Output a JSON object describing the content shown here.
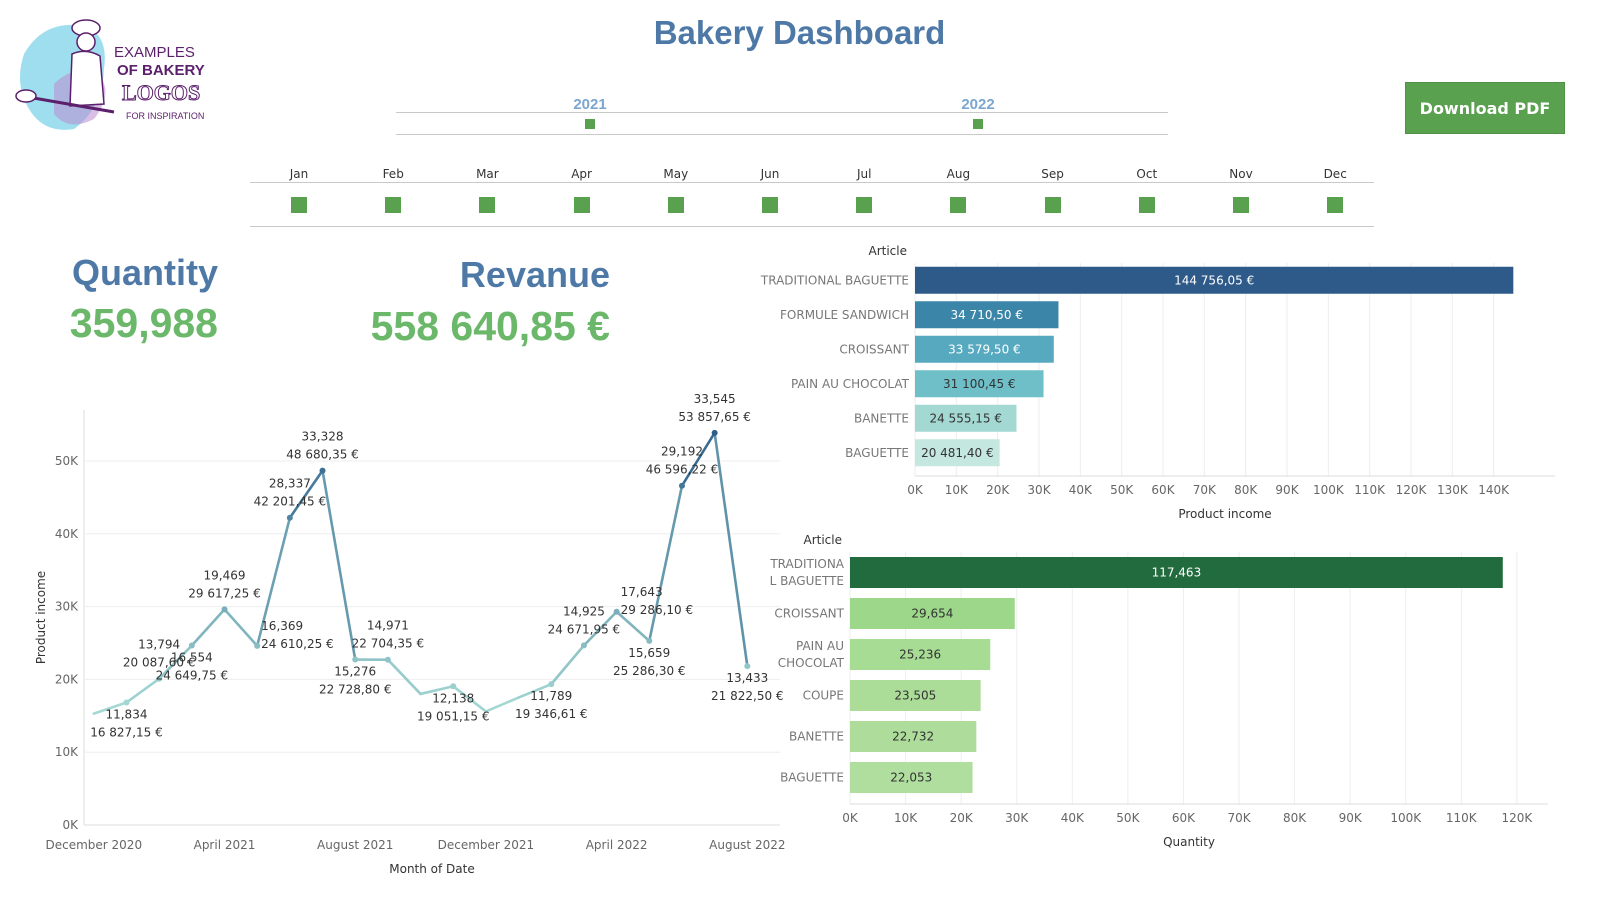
{
  "header": {
    "title": "Bakery Dashboard",
    "download_label": "Download PDF"
  },
  "logo": {
    "line1": "EXAMPLES",
    "line2": "OF BAKERY",
    "line3": "LOGOS",
    "line4": "FOR INSPIRATION",
    "icon": "baker-with-peel-icon"
  },
  "year_filter": {
    "years": [
      "2021",
      "2022"
    ],
    "selected": [
      "2021",
      "2022"
    ]
  },
  "month_filter": {
    "months": [
      "Jan",
      "Feb",
      "Mar",
      "Apr",
      "May",
      "Jun",
      "Jul",
      "Aug",
      "Sep",
      "Oct",
      "Nov",
      "Dec"
    ],
    "selected": [
      "Jan",
      "Feb",
      "Mar",
      "Apr",
      "May",
      "Jun",
      "Jul",
      "Aug",
      "Sep",
      "Oct",
      "Nov",
      "Dec"
    ]
  },
  "kpis": {
    "quantity_label": "Quantity",
    "quantity_value": "359,988",
    "revenue_label": "Revanue",
    "revenue_value": "558 640,85 €"
  },
  "colors": {
    "title_blue": "#4e79a7",
    "kpi_green": "#6bb86b",
    "button_green": "#59a14f",
    "filter_green": "#59a14f"
  },
  "chart_data": [
    {
      "type": "line",
      "xlabel": "Month of Date",
      "ylabel": "Product income",
      "ylim": [
        0,
        57000
      ],
      "yticks": [
        0,
        10000,
        20000,
        30000,
        40000,
        50000
      ],
      "ytick_labels": [
        "0K",
        "10K",
        "20K",
        "30K",
        "40K",
        "50K"
      ],
      "xtick_labels": [
        "December 2020",
        "April 2021",
        "August 2021",
        "December 2021",
        "April 2022",
        "August 2022"
      ],
      "xtick_index": [
        0,
        4,
        8,
        12,
        16,
        20
      ],
      "points": [
        {
          "i": 0,
          "y": 15300
        },
        {
          "i": 1,
          "y": 16827,
          "label": "11,834\n16 827,15 €",
          "pos": "below"
        },
        {
          "i": 2,
          "y": 20088,
          "label": "13,794\n20 087,60 €",
          "pos": "above"
        },
        {
          "i": 3,
          "y": 24650,
          "label": "16,554\n24 649,75 €",
          "pos": "below"
        },
        {
          "i": 4,
          "y": 29617,
          "label": "19,469\n29 617,25 €",
          "pos": "above"
        },
        {
          "i": 5,
          "y": 24610,
          "label": "16,369\n24 610,25 €",
          "pos": "right"
        },
        {
          "i": 6,
          "y": 42201,
          "label": "28,337\n42 201,45 €",
          "pos": "above"
        },
        {
          "i": 7,
          "y": 48680,
          "label": "33,328\n48 680,35 €",
          "pos": "above"
        },
        {
          "i": 8,
          "y": 22729,
          "label": "15,276\n22 728,80 €",
          "pos": "below"
        },
        {
          "i": 9,
          "y": 22704,
          "label": "14,971\n22 704,35 €",
          "pos": "above"
        },
        {
          "i": 10,
          "y": 18000
        },
        {
          "i": 11,
          "y": 19051,
          "label": "12,138\n19 051,15 €",
          "pos": "below"
        },
        {
          "i": 12,
          "y": 15600
        },
        {
          "i": 13,
          "y": 17500
        },
        {
          "i": 14,
          "y": 19347,
          "label": "11,789\n19 346,61 €",
          "pos": "below"
        },
        {
          "i": 15,
          "y": 24672,
          "label": "14,925\n24 671,95 €",
          "pos": "above"
        },
        {
          "i": 16,
          "y": 29286,
          "label": "17,643\n29 286,10 €",
          "pos": "right"
        },
        {
          "i": 17,
          "y": 25286,
          "label": "15,659\n25 286,30 €",
          "pos": "below"
        },
        {
          "i": 18,
          "y": 46596,
          "label": "29,192\n46 596,22 €",
          "pos": "above"
        },
        {
          "i": 19,
          "y": 53858,
          "label": "33,545\n53 857,65 €",
          "pos": "above"
        },
        {
          "i": 20,
          "y": 21823,
          "label": "13,433\n21 822,50 €",
          "pos": "below"
        }
      ]
    },
    {
      "type": "bar",
      "orientation": "horizontal",
      "legend_title": "Article",
      "xlabel": "Product income",
      "xlim": [
        0,
        150000
      ],
      "xticks": [
        0,
        10000,
        20000,
        30000,
        40000,
        50000,
        60000,
        70000,
        80000,
        90000,
        100000,
        110000,
        120000,
        130000,
        140000
      ],
      "xtick_labels": [
        "0K",
        "10K",
        "20K",
        "30K",
        "40K",
        "50K",
        "60K",
        "70K",
        "80K",
        "90K",
        "100K",
        "110K",
        "120K",
        "130K",
        "140K"
      ],
      "categories": [
        "TRADITIONAL BAGUETTE",
        "FORMULE SANDWICH",
        "CROISSANT",
        "PAIN AU CHOCOLAT",
        "BANETTE",
        "BAGUETTE"
      ],
      "values": [
        144756.05,
        34710.5,
        33579.5,
        31100.45,
        24555.15,
        20481.4
      ],
      "value_labels": [
        "144 756,05 €",
        "34 710,50 €",
        "33 579,50 €",
        "31 100,45 €",
        "24 555,15 €",
        "20 481,40 €"
      ],
      "colors": [
        "#2e5a8a",
        "#3a85a8",
        "#57a9c0",
        "#6fbfc9",
        "#a4d8d2",
        "#c4e7e0"
      ]
    },
    {
      "type": "bar",
      "orientation": "horizontal",
      "legend_title": "Article",
      "xlabel": "Quantity",
      "xlim": [
        0,
        122000
      ],
      "xticks": [
        0,
        10000,
        20000,
        30000,
        40000,
        50000,
        60000,
        70000,
        80000,
        90000,
        100000,
        110000,
        120000
      ],
      "xtick_labels": [
        "0K",
        "10K",
        "20K",
        "30K",
        "40K",
        "50K",
        "60K",
        "70K",
        "80K",
        "90K",
        "100K",
        "110K",
        "120K"
      ],
      "categories": [
        "TRADITIONA\nL BAGUETTE",
        "CROISSANT",
        "PAIN AU\nCHOCOLAT",
        "COUPE",
        "BANETTE",
        "BAGUETTE"
      ],
      "values": [
        117463,
        29654,
        25236,
        23505,
        22732,
        22053
      ],
      "value_labels": [
        "117,463",
        "29,654",
        "25,236",
        "23,505",
        "22,732",
        "22,053"
      ],
      "colors": [
        "#226b3e",
        "#9dd88a",
        "#a7dc94",
        "#abdd98",
        "#aedd9b",
        "#b0de9e"
      ]
    }
  ]
}
